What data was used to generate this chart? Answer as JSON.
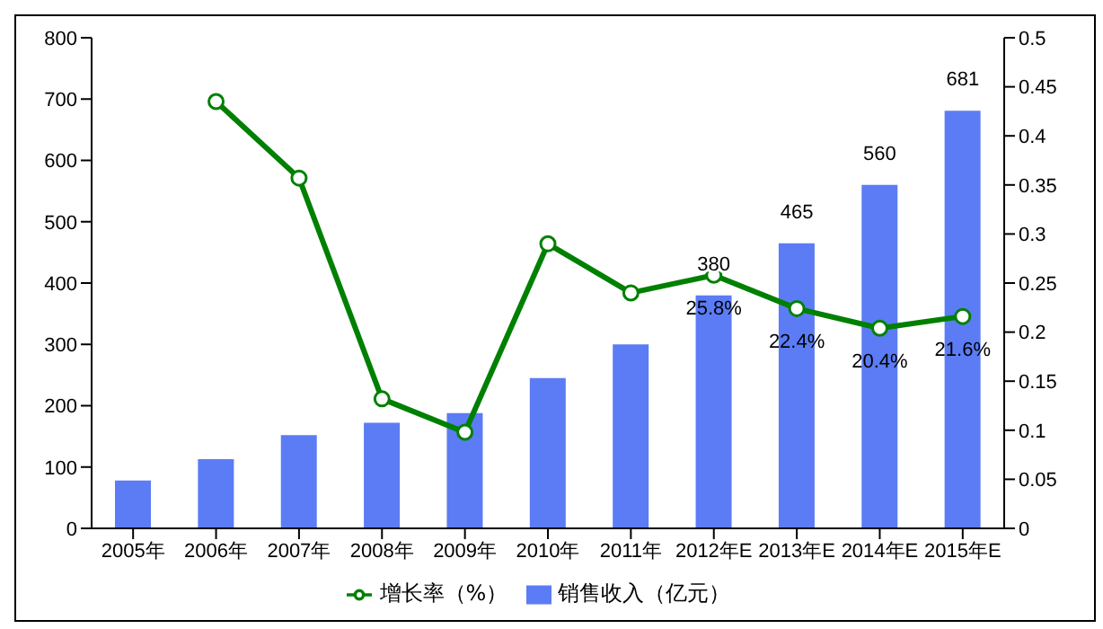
{
  "chart_data": {
    "type": "bar",
    "categories": [
      "2005年",
      "2006年",
      "2007年",
      "2008年",
      "2009年",
      "2010年",
      "2011年",
      "2012年E",
      "2013年E",
      "2014年E",
      "2015年E"
    ],
    "series": [
      {
        "name": "销售收入（亿元）",
        "color": "#5b7cf5",
        "values": [
          78,
          113,
          152,
          172,
          188,
          245,
          300,
          380,
          465,
          560,
          681
        ],
        "value_labels": [
          null,
          null,
          null,
          null,
          null,
          null,
          null,
          "380",
          "465",
          "560",
          "681"
        ]
      },
      {
        "name": "增长率（%）",
        "type": "line",
        "axis": "y2",
        "color": "#008000",
        "values": [
          null,
          0.435,
          0.357,
          0.132,
          0.098,
          0.29,
          0.24,
          0.258,
          0.224,
          0.204,
          0.216
        ],
        "value_labels": [
          null,
          null,
          null,
          null,
          null,
          null,
          null,
          "25.8%",
          "22.4%",
          "20.4%",
          "21.6%"
        ]
      }
    ],
    "ylim": [
      0,
      800
    ],
    "yticks": [
      0,
      100,
      200,
      300,
      400,
      500,
      600,
      700,
      800
    ],
    "y2lim": [
      0,
      0.5
    ],
    "y2ticks": [
      0,
      0.05,
      0.1,
      0.15,
      0.2,
      0.25,
      0.3,
      0.35,
      0.4,
      0.45,
      0.5
    ],
    "grid": false,
    "legend": "bottom",
    "marker": "circle",
    "line_style": "solid"
  }
}
